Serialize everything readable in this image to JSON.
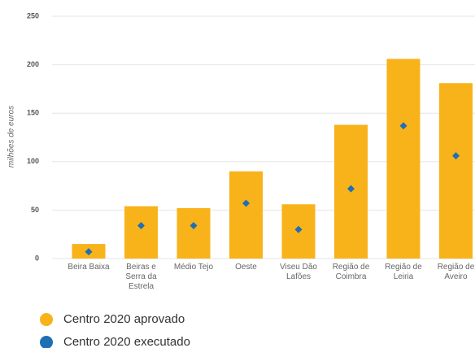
{
  "chart_data": {
    "type": "bar",
    "y_label": "milhões de euros",
    "categories": [
      "Beira Baixa",
      "Beiras e Serra da Estrela",
      "Médio Tejo",
      "Oeste",
      "Viseu Dão Lafões",
      "Região de Coimbra",
      "Região de Leiria",
      "Região de Aveiro"
    ],
    "series": [
      {
        "name": "Centro 2020 aprovado",
        "color": "#f8b21a",
        "type": "bar",
        "values": [
          15,
          54,
          52,
          90,
          56,
          138,
          206,
          181
        ]
      },
      {
        "name": "Centro 2020 executado",
        "color": "#1f6fb5",
        "type": "scatter",
        "values": [
          7,
          34,
          34,
          57,
          30,
          72,
          137,
          106
        ]
      }
    ],
    "ylim": [
      0,
      250
    ],
    "yticks": [
      0,
      50,
      100,
      150,
      200,
      250
    ],
    "grid": true
  }
}
